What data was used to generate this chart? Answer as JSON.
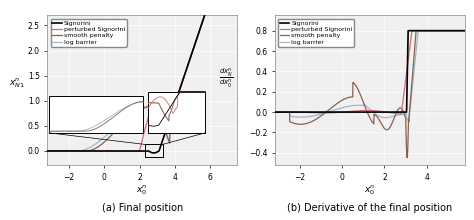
{
  "fig_width": 4.74,
  "fig_height": 2.2,
  "dpi": 100,
  "left_caption": "(a) Final position",
  "right_caption": "(b) Derivative of the final position",
  "left_xlabel": "$x_0^n$",
  "left_ylabel": "$x_{N1}^n$",
  "right_xlabel": "$x_0^n$",
  "right_ylabel": "$\\frac{dx_N^n}{dx_0^n}$",
  "left_xlim": [
    -3.2,
    7.5
  ],
  "left_ylim": [
    -0.28,
    2.7
  ],
  "right_xlim": [
    -3.2,
    5.8
  ],
  "right_ylim": [
    -0.52,
    0.95
  ],
  "left_xticks": [
    -2,
    0,
    2,
    4,
    6
  ],
  "left_yticks": [
    0,
    0.5,
    1,
    1.5,
    2,
    2.5
  ],
  "right_xticks": [
    -2,
    0,
    2,
    4
  ],
  "right_yticks": [
    -0.4,
    -0.2,
    0,
    0.2,
    0.4,
    0.6,
    0.8
  ],
  "colors": {
    "signorini": "#000000",
    "perturbed": "#c8707a",
    "smooth": "#8B6050",
    "log_barrier": "#a0b8cc"
  },
  "legend_labels": [
    "Signorini",
    "perturbed Signorini",
    "smooth penalty",
    "log barrier"
  ],
  "grid_color": "#e8e8e8",
  "background_color": "#f0f0f0"
}
